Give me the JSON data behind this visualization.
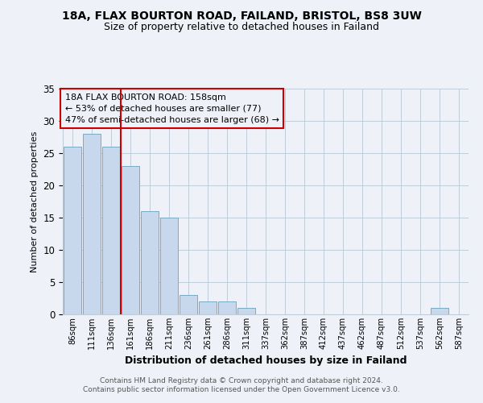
{
  "title1": "18A, FLAX BOURTON ROAD, FAILAND, BRISTOL, BS8 3UW",
  "title2": "Size of property relative to detached houses in Failand",
  "xlabel": "Distribution of detached houses by size in Failand",
  "ylabel": "Number of detached properties",
  "footer1": "Contains HM Land Registry data © Crown copyright and database right 2024.",
  "footer2": "Contains public sector information licensed under the Open Government Licence v3.0.",
  "annotation_line1": "18A FLAX BOURTON ROAD: 158sqm",
  "annotation_line2": "← 53% of detached houses are smaller (77)",
  "annotation_line3": "47% of semi-detached houses are larger (68) →",
  "bar_labels": [
    "86sqm",
    "111sqm",
    "136sqm",
    "161sqm",
    "186sqm",
    "211sqm",
    "236sqm",
    "261sqm",
    "286sqm",
    "311sqm",
    "337sqm",
    "362sqm",
    "387sqm",
    "412sqm",
    "437sqm",
    "462sqm",
    "487sqm",
    "512sqm",
    "537sqm",
    "562sqm",
    "587sqm"
  ],
  "bar_values": [
    26,
    28,
    26,
    23,
    16,
    15,
    3,
    2,
    2,
    1,
    0,
    0,
    0,
    0,
    0,
    0,
    0,
    0,
    0,
    1,
    0
  ],
  "bar_color": "#c8d8ec",
  "bar_edge_color": "#7aaac8",
  "bg_color": "#eef2f8",
  "grid_color": "#c0ccd8",
  "vline_x": 3.0,
  "vline_color": "#cc0000",
  "annotation_box_edge": "#cc0000",
  "ylim": [
    0,
    35
  ],
  "yticks": [
    0,
    5,
    10,
    15,
    20,
    25,
    30,
    35
  ]
}
